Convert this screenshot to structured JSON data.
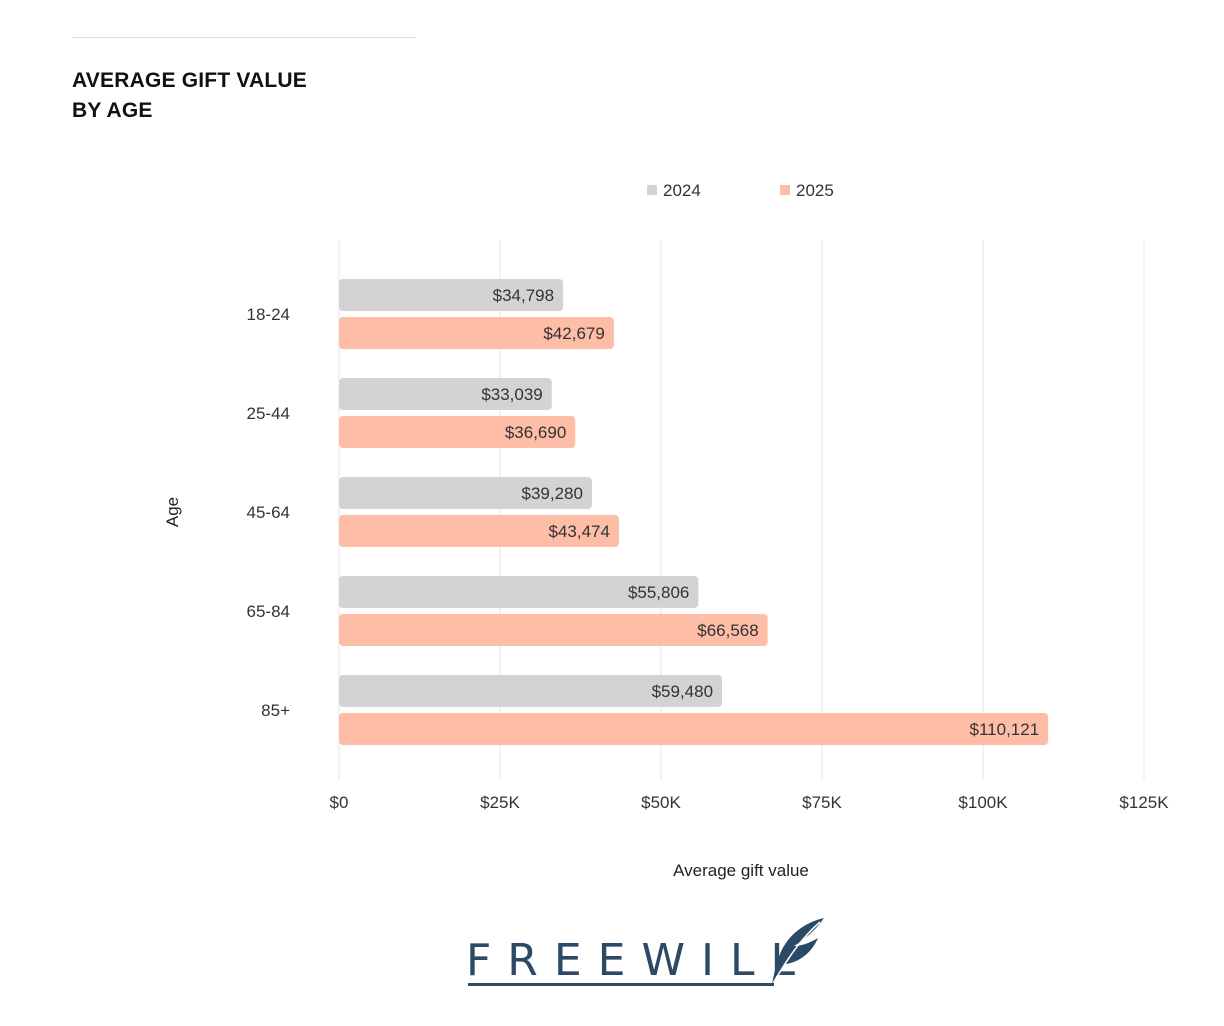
{
  "header": {
    "title_line1": "AVERAGE GIFT VALUE",
    "title_line2": "BY AGE"
  },
  "brand": {
    "name": "FREEWILL",
    "color": "#2b4a66"
  },
  "chart_data": {
    "type": "bar",
    "orientation": "horizontal",
    "categories": [
      "18-24",
      "25-44",
      "45-64",
      "65-84",
      "85+"
    ],
    "series": [
      {
        "name": "2024",
        "color": "#d3d3d3",
        "values": [
          34798,
          33039,
          39280,
          55806,
          59480
        ],
        "labels": [
          "$34,798",
          "$33,039",
          "$39,280",
          "$55,806",
          "$59,480"
        ]
      },
      {
        "name": "2025",
        "color": "#fdbda7",
        "values": [
          42679,
          36690,
          43474,
          66568,
          110121
        ],
        "labels": [
          "$42,679",
          "$36,690",
          "$43,474",
          "$66,568",
          "$110,121"
        ]
      }
    ],
    "xlabel": "Average gift value",
    "ylabel": "Age",
    "xlim": [
      0,
      125000
    ],
    "xticks": [
      0,
      25000,
      50000,
      75000,
      100000,
      125000
    ],
    "xtick_labels": [
      "$0",
      "$25K",
      "$50K",
      "$75K",
      "$100K",
      "$125K"
    ],
    "grid": true,
    "legend": "top-center"
  }
}
